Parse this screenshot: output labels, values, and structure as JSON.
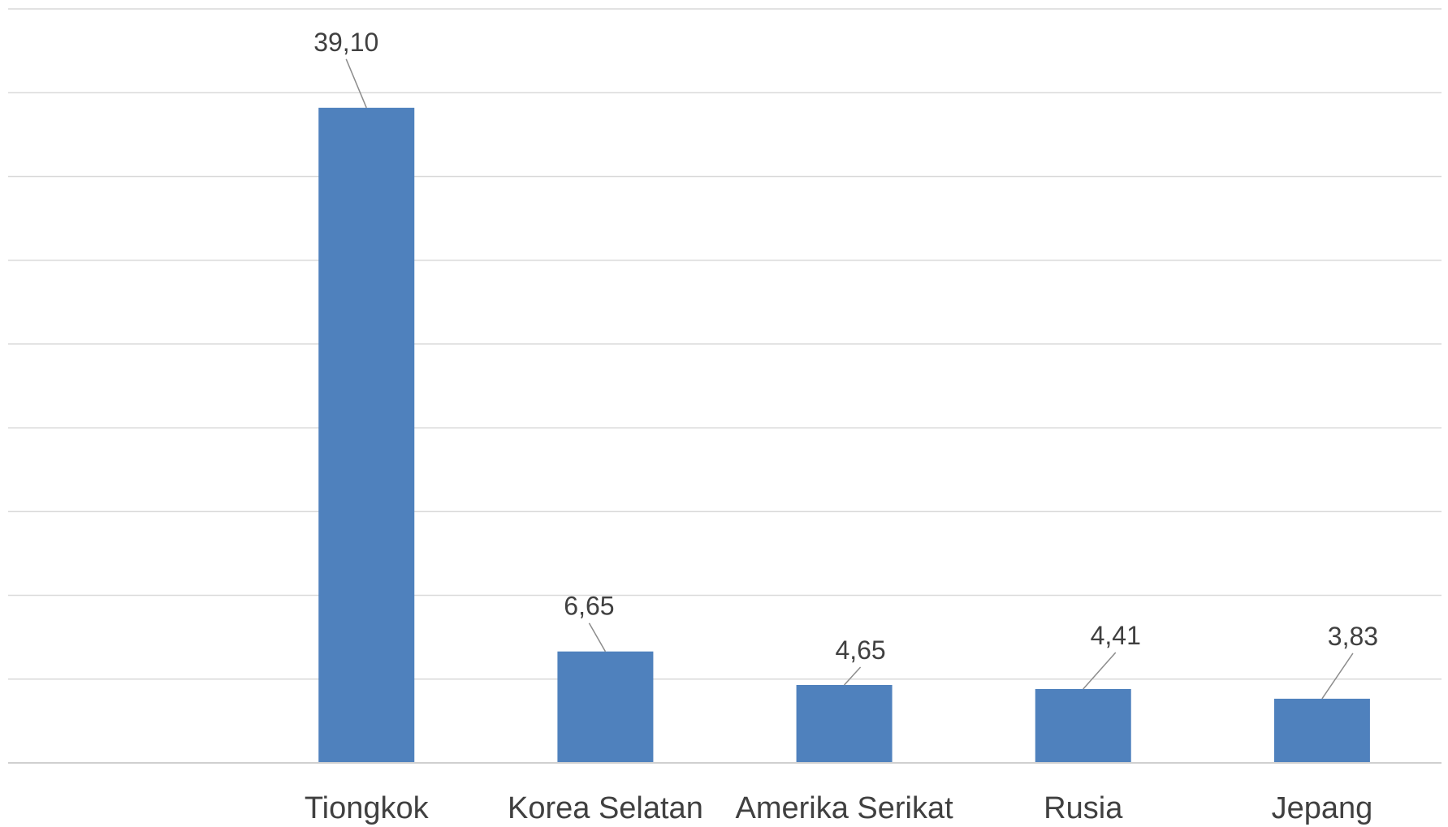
{
  "chart_data": {
    "type": "bar",
    "categories": [
      "",
      "Tiongkok",
      "Korea Selatan",
      "Amerika Serikat",
      "Rusia",
      "Jepang"
    ],
    "values": [
      null,
      39.1,
      6.65,
      4.65,
      4.41,
      3.83
    ],
    "data_labels": [
      "",
      "39,10",
      "6,65",
      "4,65",
      "4,41",
      "3,83"
    ],
    "title": "",
    "xlabel": "",
    "ylabel": "",
    "ylim": [
      0,
      45
    ],
    "ytick_step": 5,
    "ytick_labels_visible": false,
    "grid": true,
    "bar_color": "#4f81bd",
    "legend": "none"
  }
}
